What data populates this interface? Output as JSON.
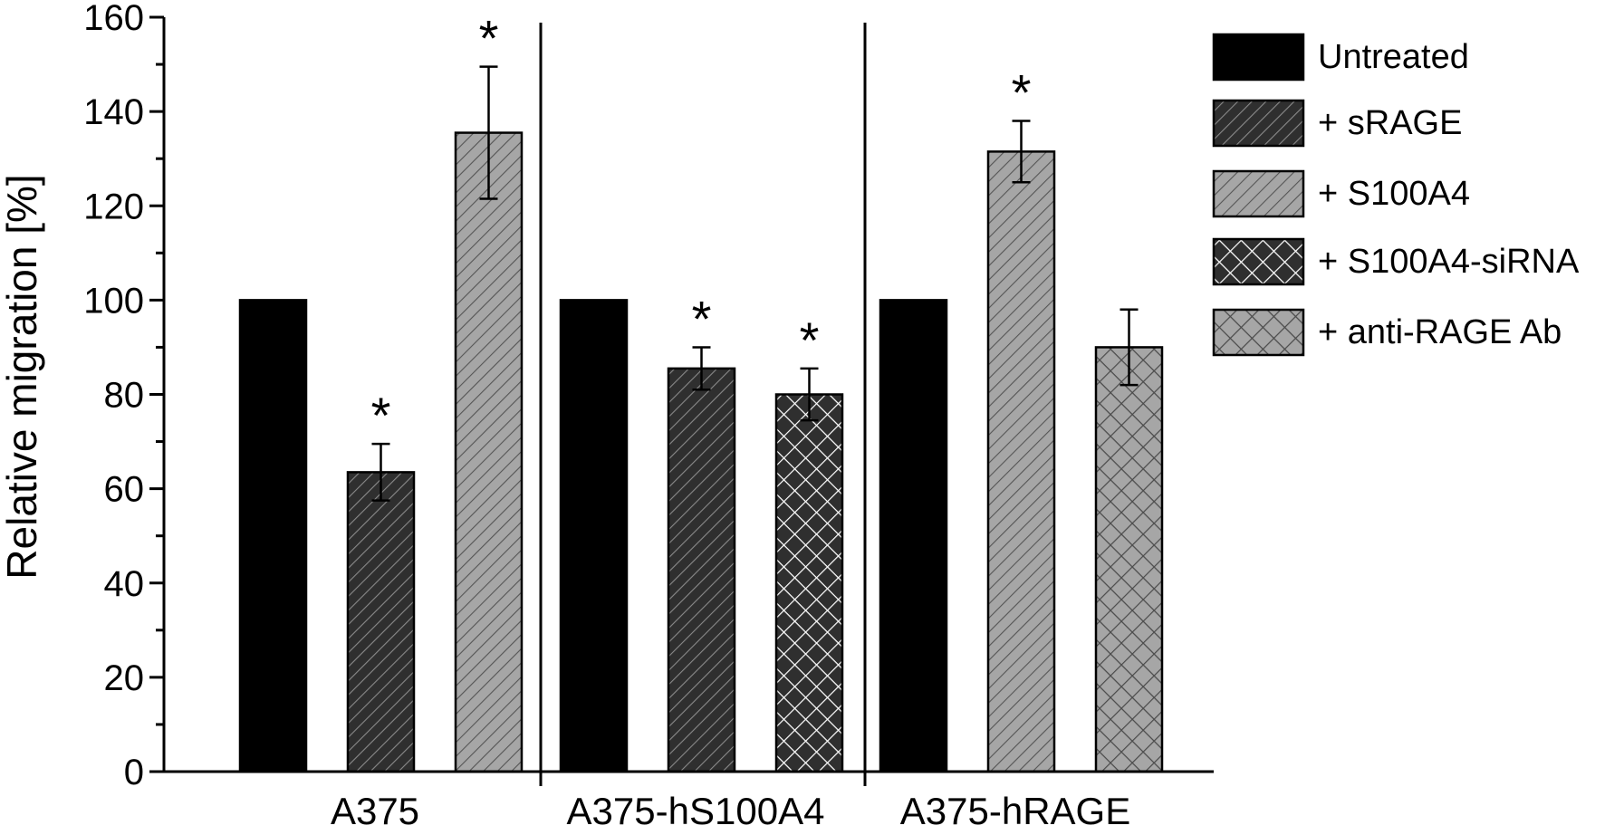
{
  "chart_data": {
    "type": "bar",
    "title": "",
    "xlabel": "",
    "ylabel": "Relative migration [%]",
    "ylim": [
      0,
      160
    ],
    "yticks": [
      0,
      20,
      40,
      60,
      80,
      100,
      120,
      140,
      160
    ],
    "grid": false,
    "legend_position": "right",
    "series": [
      {
        "name": "Untreated",
        "pattern": "solid-black"
      },
      {
        "name": "+ sRAGE",
        "pattern": "dark-diagonal"
      },
      {
        "name": "+ S100A4",
        "pattern": "light-diagonal"
      },
      {
        "name": "+ S100A4-siRNA",
        "pattern": "dark-crosshatch"
      },
      {
        "name": "+ anti-RAGE Ab",
        "pattern": "light-crosshatch"
      }
    ],
    "groups": [
      {
        "label": "A375",
        "bars": [
          {
            "series": "Untreated",
            "value": 100
          },
          {
            "series": "+ sRAGE",
            "value": 63.5,
            "error": 6,
            "marker": "*"
          },
          {
            "series": "+ S100A4",
            "value": 135.5,
            "error": 14,
            "marker": "*"
          }
        ]
      },
      {
        "label": "A375-hS100A4",
        "bars": [
          {
            "series": "Untreated",
            "value": 100
          },
          {
            "series": "+ sRAGE",
            "value": 85.5,
            "error": 4.5,
            "marker": "*"
          },
          {
            "series": "+ S100A4-siRNA",
            "value": 80,
            "error": 5.5,
            "marker": "*"
          }
        ]
      },
      {
        "label": "A375-hRAGE",
        "bars": [
          {
            "series": "Untreated",
            "value": 100
          },
          {
            "series": "+ S100A4",
            "value": 131.5,
            "error": 6.5,
            "marker": "*"
          },
          {
            "series": "+ anti-RAGE Ab",
            "value": 90,
            "error": 8
          }
        ]
      }
    ],
    "colors": {
      "black": "#000000",
      "dark_fill": "#2f2f2f",
      "light_fill": "#a6a6a6",
      "hatch_on_dark": "#8a8a8a",
      "hatch_on_light": "#555555",
      "cross_on_dark": "#ffffff",
      "cross_on_light": "#4a4a4a"
    }
  }
}
